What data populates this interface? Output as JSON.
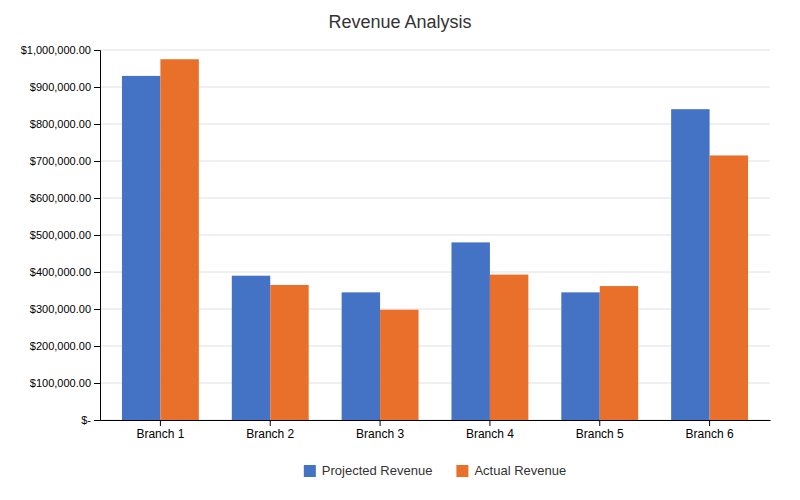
{
  "chart_data": {
    "type": "bar",
    "title": "Revenue Analysis",
    "categories": [
      "Branch 1",
      "Branch 2",
      "Branch 3",
      "Branch 4",
      "Branch 5",
      "Branch 6"
    ],
    "series": [
      {
        "name": "Projected Revenue",
        "color": "#4472C4",
        "values": [
          930000,
          390000,
          345000,
          480000,
          345000,
          840000
        ]
      },
      {
        "name": "Actual Revenue",
        "color": "#E8702A",
        "values": [
          975000,
          365000,
          298000,
          393000,
          362000,
          715000
        ]
      }
    ],
    "ylim": [
      0,
      1000000
    ],
    "yticks": [
      {
        "value": 0,
        "label": "$-"
      },
      {
        "value": 100000,
        "label": "$100,000.00"
      },
      {
        "value": 200000,
        "label": "$200,000.00"
      },
      {
        "value": 300000,
        "label": "$300,000.00"
      },
      {
        "value": 400000,
        "label": "$400,000.00"
      },
      {
        "value": 500000,
        "label": "$500,000.00"
      },
      {
        "value": 600000,
        "label": "$600,000.00"
      },
      {
        "value": 700000,
        "label": "$700,000.00"
      },
      {
        "value": 800000,
        "label": "$800,000.00"
      },
      {
        "value": 900000,
        "label": "$900,000.00"
      },
      {
        "value": 1000000,
        "label": "$1,000,000.00"
      }
    ],
    "grid": true,
    "legend": "bottom"
  }
}
